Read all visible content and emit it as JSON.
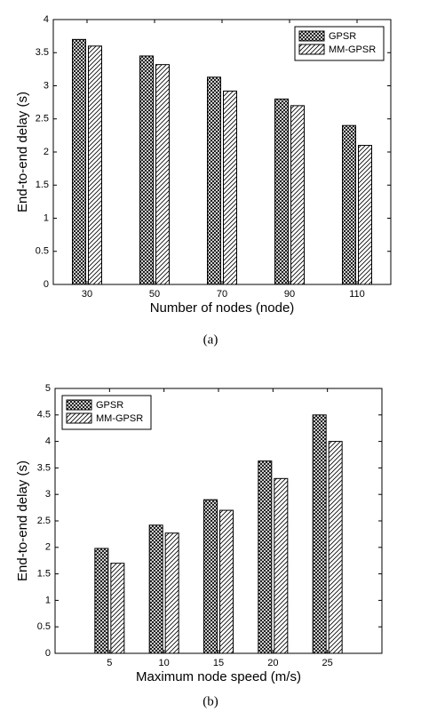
{
  "chart_data": [
    {
      "type": "bar",
      "caption": "(a)",
      "xlabel": "Number of nodes (node)",
      "ylabel": "End-to-end delay (s)",
      "x": [
        30,
        50,
        70,
        90,
        110
      ],
      "xlim": [
        20,
        120
      ],
      "xticks": [
        30,
        50,
        70,
        90,
        110
      ],
      "ylim": [
        0,
        4
      ],
      "yticks": [
        0,
        0.5,
        1,
        1.5,
        2,
        2.5,
        3,
        3.5,
        4
      ],
      "legend": "upper-right",
      "series": [
        {
          "name": "GPSR",
          "color": "#000000",
          "hatch": "crosshatch",
          "values": [
            3.7,
            3.45,
            3.13,
            2.8,
            2.4
          ]
        },
        {
          "name": "MM-GPSR",
          "color": "#000000",
          "hatch": "diagonal",
          "values": [
            3.6,
            3.32,
            2.92,
            2.7,
            2.1
          ]
        }
      ]
    },
    {
      "type": "bar",
      "caption": "(b)",
      "xlabel": "Maximum node speed (m/s)",
      "ylabel": "End-to-end delay (s)",
      "x": [
        5,
        10,
        15,
        20,
        25
      ],
      "xlim": [
        0,
        30
      ],
      "xticks": [
        5,
        10,
        15,
        20,
        25
      ],
      "ylim": [
        0,
        5
      ],
      "yticks": [
        0,
        0.5,
        1,
        1.5,
        2,
        2.5,
        3,
        3.5,
        4,
        4.5,
        5
      ],
      "legend": "upper-left",
      "series": [
        {
          "name": "GPSR",
          "color": "#000000",
          "hatch": "crosshatch",
          "values": [
            1.98,
            2.42,
            2.9,
            3.63,
            4.5
          ]
        },
        {
          "name": "MM-GPSR",
          "color": "#000000",
          "hatch": "diagonal",
          "values": [
            1.7,
            2.27,
            2.7,
            3.3,
            4.0
          ]
        }
      ]
    }
  ]
}
